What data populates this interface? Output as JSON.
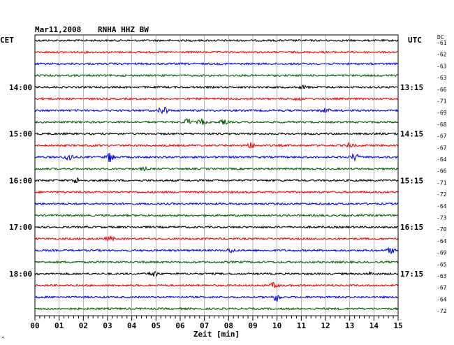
{
  "header": {
    "date": "Mar11,2008",
    "station": "RNHA HHZ BW"
  },
  "left_timezone": "CET",
  "right_timezone": "UTC",
  "dc_label": "DC",
  "xlabel": "Zeit [min]",
  "small_mark": "^",
  "chart_data": {
    "type": "line",
    "title": "Mar11,2008   RNHA HHZ BW",
    "xlabel": "Zeit [min]",
    "xlim": [
      0,
      15
    ],
    "x_ticks": [
      "00",
      "01",
      "02",
      "03",
      "04",
      "05",
      "06",
      "07",
      "08",
      "09",
      "10",
      "11",
      "12",
      "13",
      "14",
      "15"
    ],
    "trace_minutes": 15,
    "trace_count": 24,
    "color_cycle": [
      "#000000",
      "#ff0000",
      "#0000ff",
      "#006400"
    ],
    "hour_labels_left": [
      {
        "trace": 4,
        "label": "14:00"
      },
      {
        "trace": 8,
        "label": "15:00"
      },
      {
        "trace": 12,
        "label": "16:00"
      },
      {
        "trace": 16,
        "label": "17:00"
      },
      {
        "trace": 20,
        "label": "18:00"
      }
    ],
    "hour_labels_right": [
      {
        "trace": 4,
        "label": "13:15"
      },
      {
        "trace": 8,
        "label": "14:15"
      },
      {
        "trace": 12,
        "label": "15:15"
      },
      {
        "trace": 16,
        "label": "16:15"
      },
      {
        "trace": 20,
        "label": "17:15"
      }
    ],
    "dc_offsets": [
      -61,
      -62,
      -63,
      -63,
      -66,
      -71,
      -69,
      -68,
      -67,
      -67,
      -64,
      -66,
      -71,
      -72,
      -64,
      -73,
      -70,
      -64,
      -69,
      -65,
      -63,
      -67,
      -64,
      -72
    ],
    "events": [
      {
        "trace": 4,
        "minute": 11.1,
        "amp": 2
      },
      {
        "trace": 5,
        "minute": 10.9,
        "amp": 2
      },
      {
        "trace": 6,
        "minute": 5.3,
        "amp": 7
      },
      {
        "trace": 6,
        "minute": 12.0,
        "amp": 3
      },
      {
        "trace": 7,
        "minute": 6.3,
        "amp": 5
      },
      {
        "trace": 7,
        "minute": 6.9,
        "amp": 4
      },
      {
        "trace": 7,
        "minute": 7.8,
        "amp": 3
      },
      {
        "trace": 9,
        "minute": 8.9,
        "amp": 4
      },
      {
        "trace": 9,
        "minute": 13.0,
        "amp": 3
      },
      {
        "trace": 10,
        "minute": 1.4,
        "amp": 6
      },
      {
        "trace": 10,
        "minute": 3.1,
        "amp": 7
      },
      {
        "trace": 10,
        "minute": 13.2,
        "amp": 5
      },
      {
        "trace": 11,
        "minute": 4.5,
        "amp": 2
      },
      {
        "trace": 12,
        "minute": 1.7,
        "amp": 4
      },
      {
        "trace": 17,
        "minute": 3.1,
        "amp": 3
      },
      {
        "trace": 18,
        "minute": 8.1,
        "amp": 3
      },
      {
        "trace": 18,
        "minute": 14.7,
        "amp": 4
      },
      {
        "trace": 20,
        "minute": 4.9,
        "amp": 4
      },
      {
        "trace": 20,
        "minute": 13.9,
        "amp": 2
      },
      {
        "trace": 21,
        "minute": 9.9,
        "amp": 4
      },
      {
        "trace": 22,
        "minute": 10.0,
        "amp": 6
      }
    ]
  }
}
